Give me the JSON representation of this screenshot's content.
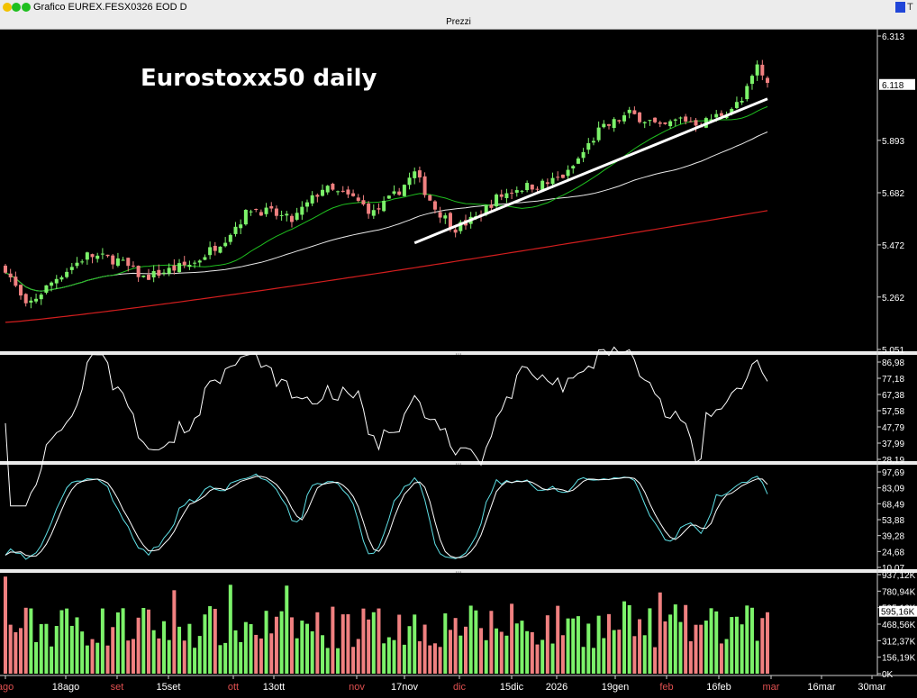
{
  "window": {
    "title": "Grafico EUREX.FESX0326 EOD D",
    "panel_label": "Prezzi",
    "separator_label": "..."
  },
  "colors": {
    "background": "#000000",
    "candle_up": "#7cf26a",
    "candle_down": "#f08080",
    "ma_short": "#1fbf1f",
    "ma_mid": "#e8e8e8",
    "ma_long": "#d21e1e",
    "trendline": "#ffffff",
    "osc1": "#ffffff",
    "stoch_k": "#5fe0e6",
    "stoch_d": "#ffffff",
    "month_label": "#e05050",
    "date_label": "#ffffff"
  },
  "chart_data": [
    {
      "type": "candlestick",
      "title": "Eurostoxx50 daily",
      "y_ticks": [
        "6.313",
        "5.893",
        "5.682",
        "5.472",
        "5.262",
        "5.051"
      ],
      "last_price_label": "6.118",
      "ylim": [
        5.051,
        6.313
      ],
      "series": [
        {
          "name": "trendline",
          "x": [
            "17nov",
            "mar"
          ],
          "y": [
            5.48,
            6.06
          ]
        }
      ]
    },
    {
      "type": "line",
      "y_ticks": [
        "86,98",
        "77,18",
        "67,38",
        "57,58",
        "47,79",
        "37,99",
        "28,19"
      ],
      "ylim": [
        28.19,
        86.98
      ]
    },
    {
      "type": "line",
      "y_ticks": [
        "97,69",
        "83,09",
        "68,49",
        "53,88",
        "39,28",
        "24,68",
        "10,07"
      ],
      "ylim": [
        10.07,
        97.69
      ]
    },
    {
      "type": "bar",
      "y_ticks": [
        "937,12K",
        "780,94K",
        "595,16K",
        "468,56K",
        "312,37K",
        "156,19K",
        "0K"
      ],
      "last_value_label": "595,16K"
    }
  ],
  "x_axis": {
    "labels": [
      {
        "text": "ago",
        "month": true
      },
      {
        "text": "18ago",
        "month": false
      },
      {
        "text": "set",
        "month": true
      },
      {
        "text": "15set",
        "month": false
      },
      {
        "text": "ott",
        "month": true
      },
      {
        "text": "13ott",
        "month": false
      },
      {
        "text": "nov",
        "month": true
      },
      {
        "text": "17nov",
        "month": false
      },
      {
        "text": "dic",
        "month": true
      },
      {
        "text": "15dic",
        "month": false
      },
      {
        "text": "2026",
        "month": false
      },
      {
        "text": "19gen",
        "month": false
      },
      {
        "text": "feb",
        "month": true
      },
      {
        "text": "16feb",
        "month": false
      },
      {
        "text": "mar",
        "month": true
      },
      {
        "text": "16mar",
        "month": false
      },
      {
        "text": "30mar",
        "month": false
      }
    ]
  }
}
